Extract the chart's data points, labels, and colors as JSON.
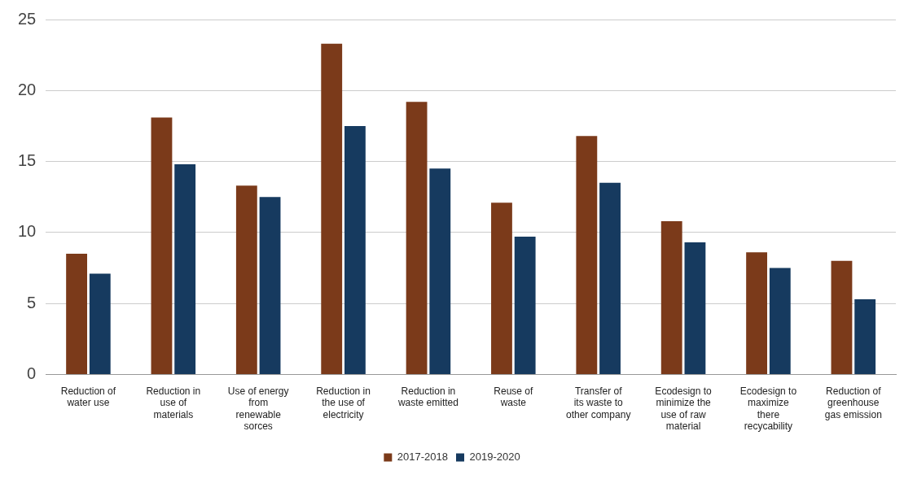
{
  "chart_data": {
    "type": "bar",
    "categories": [
      "Reduction of water use",
      "Reduction in use of materials",
      "Use of energy from renewable sorces",
      "Reduction in the use of electricity",
      "Reduction in waste emitted",
      "Reuse of waste",
      "Transfer of its waste to other company",
      "Ecodesign to minimize the use of raw material",
      "Ecodesign to maximize there recycability",
      "Reduction of greenhouse gas emission"
    ],
    "series": [
      {
        "name": "2017-2018",
        "color": "#7b3a1a",
        "values": [
          8.5,
          18.1,
          13.3,
          23.3,
          19.2,
          12.1,
          16.8,
          10.8,
          8.6,
          8.0
        ]
      },
      {
        "name": "2019-2020",
        "color": "#163a5f",
        "values": [
          7.1,
          14.8,
          12.5,
          17.5,
          14.5,
          9.7,
          13.5,
          9.3,
          7.5,
          5.3
        ]
      }
    ],
    "ylim": [
      0,
      25
    ],
    "yticks": [
      0,
      5,
      10,
      15,
      20,
      25
    ],
    "grid": "y",
    "legend": "bottom"
  }
}
